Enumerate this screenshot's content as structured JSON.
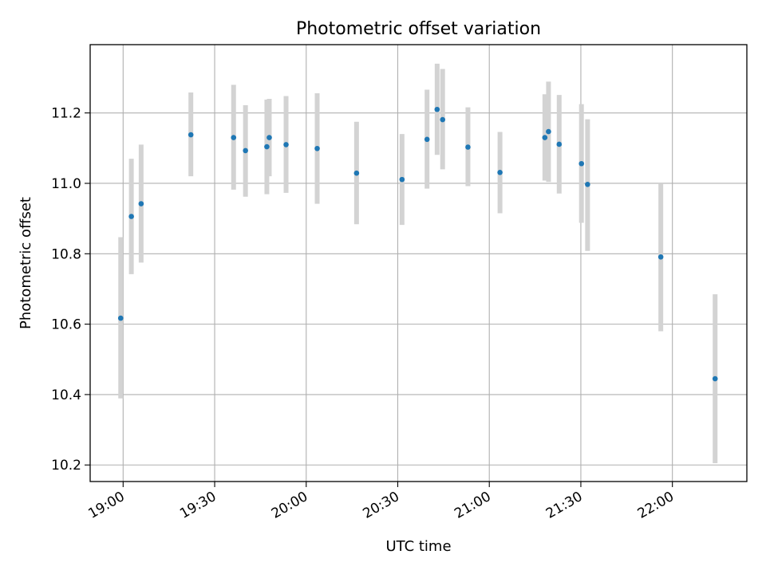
{
  "chart_data": {
    "type": "scatter",
    "title": "Photometric offset variation",
    "xlabel": "UTC time",
    "ylabel": "Photometric offset",
    "x_unit": "minutes after 19:00 UTC",
    "xlim": [
      -10.8,
      204.4
    ],
    "ylim": [
      10.153,
      11.394
    ],
    "x_ticks": [
      {
        "value": 0,
        "label": "19:00"
      },
      {
        "value": 30,
        "label": "19:30"
      },
      {
        "value": 60,
        "label": "20:00"
      },
      {
        "value": 90,
        "label": "20:30"
      },
      {
        "value": 120,
        "label": "21:00"
      },
      {
        "value": 150,
        "label": "21:30"
      },
      {
        "value": 180,
        "label": "22:00"
      }
    ],
    "y_ticks": [
      {
        "value": 10.2,
        "label": "10.2"
      },
      {
        "value": 10.4,
        "label": "10.4"
      },
      {
        "value": 10.6,
        "label": "10.6"
      },
      {
        "value": 10.8,
        "label": "10.8"
      },
      {
        "value": 11.0,
        "label": "11.0"
      },
      {
        "value": 11.2,
        "label": "11.2"
      }
    ],
    "grid": true,
    "point_color": "#1f77b4",
    "errorbar_color": "#d3d3d3",
    "points": [
      {
        "t": -0.8,
        "y": 10.617,
        "lo": 10.389,
        "hi": 10.847
      },
      {
        "t": 2.7,
        "y": 10.906,
        "lo": 10.742,
        "hi": 11.07
      },
      {
        "t": 5.9,
        "y": 10.942,
        "lo": 10.775,
        "hi": 11.11
      },
      {
        "t": 22.2,
        "y": 11.138,
        "lo": 11.02,
        "hi": 11.258
      },
      {
        "t": 36.2,
        "y": 11.13,
        "lo": 10.982,
        "hi": 11.28
      },
      {
        "t": 40.1,
        "y": 11.093,
        "lo": 10.962,
        "hi": 11.222
      },
      {
        "t": 47.1,
        "y": 11.104,
        "lo": 10.969,
        "hi": 11.238
      },
      {
        "t": 47.9,
        "y": 11.13,
        "lo": 11.02,
        "hi": 11.24
      },
      {
        "t": 53.4,
        "y": 11.11,
        "lo": 10.973,
        "hi": 11.248
      },
      {
        "t": 63.6,
        "y": 11.099,
        "lo": 10.942,
        "hi": 11.256
      },
      {
        "t": 76.5,
        "y": 11.029,
        "lo": 10.884,
        "hi": 11.175
      },
      {
        "t": 91.4,
        "y": 11.011,
        "lo": 10.882,
        "hi": 11.14
      },
      {
        "t": 99.6,
        "y": 11.125,
        "lo": 10.985,
        "hi": 11.266
      },
      {
        "t": 102.9,
        "y": 11.21,
        "lo": 11.081,
        "hi": 11.34
      },
      {
        "t": 104.7,
        "y": 11.181,
        "lo": 11.04,
        "hi": 11.325
      },
      {
        "t": 113.0,
        "y": 11.103,
        "lo": 10.992,
        "hi": 11.216
      },
      {
        "t": 123.5,
        "y": 11.031,
        "lo": 10.915,
        "hi": 11.146
      },
      {
        "t": 138.2,
        "y": 11.13,
        "lo": 11.008,
        "hi": 11.253
      },
      {
        "t": 139.4,
        "y": 11.147,
        "lo": 11.004,
        "hi": 11.289
      },
      {
        "t": 142.9,
        "y": 11.111,
        "lo": 10.971,
        "hi": 11.251
      },
      {
        "t": 150.2,
        "y": 11.056,
        "lo": 10.888,
        "hi": 11.225
      },
      {
        "t": 152.2,
        "y": 10.997,
        "lo": 10.808,
        "hi": 11.182
      },
      {
        "t": 176.2,
        "y": 10.791,
        "lo": 10.58,
        "hi": 11.0
      },
      {
        "t": 194.0,
        "y": 10.445,
        "lo": 10.205,
        "hi": 10.685
      }
    ]
  }
}
